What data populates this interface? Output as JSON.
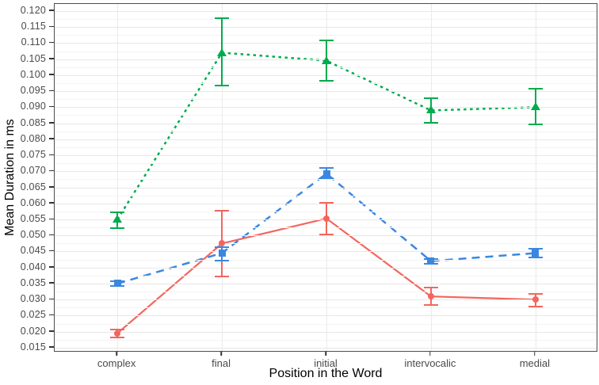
{
  "chart_data": {
    "type": "line",
    "title": "",
    "xlabel": "Position in the Word",
    "ylabel": "Mean Duration in ms",
    "categories": [
      "complex",
      "final",
      "initial",
      "intervocalic",
      "medial"
    ],
    "y_ticks": [
      "0.120",
      "0.115",
      "0.110",
      "0.105",
      "0.100",
      "0.095",
      "0.090",
      "0.085",
      "0.080",
      "0.075",
      "0.070",
      "0.065",
      "0.060",
      "0.055",
      "0.050",
      "0.045",
      "0.040",
      "0.035",
      "0.030",
      "0.025",
      "0.020",
      "0.015"
    ],
    "ylim": [
      0.015,
      0.12
    ],
    "ylim_render": [
      0.0135,
      0.1222
    ],
    "y_tick_step": 0.005,
    "grid": "horizontal major+minor, vertical major at categories",
    "legend": "none",
    "error_bars": true,
    "series": [
      {
        "name": "red-solid-circle",
        "color": "#f2665e",
        "linetype": "solid",
        "marker": "circle",
        "values": [
          0.0195,
          0.0475,
          0.0553,
          0.031,
          0.03
        ],
        "ci_low": [
          0.018,
          0.037,
          0.05,
          0.028,
          0.0275
        ],
        "ci_high": [
          0.021,
          0.058,
          0.0605,
          0.034,
          0.032
        ]
      },
      {
        "name": "blue-dashed-square",
        "color": "#3b87e0",
        "linetype": "dashed",
        "marker": "square",
        "values": [
          0.035,
          0.0445,
          0.0693,
          0.042,
          0.0445
        ],
        "ci_low": [
          0.034,
          0.042,
          0.0675,
          0.041,
          0.043
        ],
        "ci_high": [
          0.036,
          0.0465,
          0.0712,
          0.043,
          0.046
        ]
      },
      {
        "name": "green-dotted-triangle",
        "color": "#00ab4e",
        "linetype": "dotted",
        "marker": "triangle-up",
        "values": [
          0.055,
          0.107,
          0.1045,
          0.089,
          0.09
        ],
        "ci_low": [
          0.052,
          0.0965,
          0.098,
          0.085,
          0.0845
        ],
        "ci_high": [
          0.0575,
          0.118,
          0.111,
          0.093,
          0.096
        ]
      }
    ],
    "colors": {
      "panel_border": "#4d4d4d",
      "grid_major": "#e7e7e7",
      "grid_minor": "#f3f3f3",
      "tick_text": "#4a4a4a",
      "axis_title": "#000000",
      "background": "#ffffff"
    }
  }
}
